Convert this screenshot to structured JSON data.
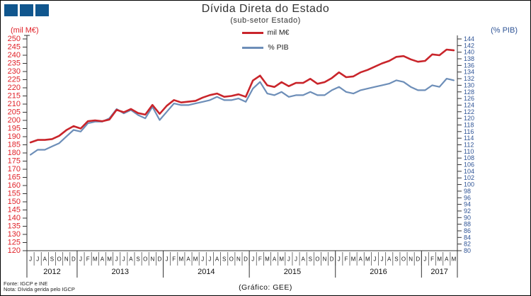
{
  "logo": {
    "square_count": 3,
    "color": "#10568e"
  },
  "header": {
    "title": "Dívida Direta do Estado",
    "subtitle": "(sub-setor  Estado)"
  },
  "footer": {
    "fonte": "Fonte: IGCP e INE",
    "nota": "Nota: Dívida gerida pelo IGCP",
    "grafico": "(Gráfico:  GEE)"
  },
  "chart_data": {
    "type": "line",
    "title": "Dívida Direta do Estado",
    "subtitle": "(sub-setor Estado)",
    "grid": false,
    "legend_position": "top-center",
    "x_months": [
      "J",
      "J",
      "A",
      "S",
      "O",
      "N",
      "D",
      "J",
      "F",
      "M",
      "A",
      "M",
      "J",
      "J",
      "A",
      "S",
      "O",
      "N",
      "D",
      "J",
      "F",
      "M",
      "A",
      "M",
      "J",
      "J",
      "A",
      "S",
      "O",
      "N",
      "D",
      "J",
      "F",
      "M",
      "A",
      "M",
      "J",
      "J",
      "A",
      "S",
      "O",
      "N",
      "D",
      "J",
      "F",
      "M",
      "A",
      "M",
      "J",
      "J",
      "A",
      "S",
      "O",
      "N",
      "D",
      "J",
      "F",
      "M",
      "A",
      "M"
    ],
    "years": [
      {
        "label": "2012",
        "months": 7
      },
      {
        "label": "2013",
        "months": 12
      },
      {
        "label": "2014",
        "months": 12
      },
      {
        "label": "2015",
        "months": 12
      },
      {
        "label": "2016",
        "months": 12
      },
      {
        "label": "2017",
        "months": 5
      }
    ],
    "left_axis": {
      "label": "(mil M€)",
      "min": 120,
      "max": 250,
      "step": 5,
      "color": "#e01f26"
    },
    "right_axis": {
      "label": "(% PIB)",
      "min": 80,
      "max": 144,
      "step": 2,
      "color": "#2f5496"
    },
    "series": [
      {
        "name": "mil M€",
        "axis": "left",
        "color": "#c9252b",
        "values": [
          186.5,
          188.0,
          188.0,
          188.5,
          190.5,
          194.0,
          196.5,
          195.0,
          199.5,
          200.0,
          199.5,
          200.5,
          206.5,
          205.0,
          207.0,
          204.5,
          203.5,
          209.5,
          204.0,
          209.0,
          212.5,
          211.0,
          211.5,
          212.0,
          214.0,
          215.5,
          216.5,
          214.5,
          215.0,
          216.0,
          214.5,
          224.5,
          227.5,
          221.5,
          220.5,
          223.5,
          221.0,
          223.0,
          223.0,
          225.5,
          222.5,
          223.5,
          226.0,
          229.5,
          226.5,
          227.0,
          229.5,
          231.0,
          233.0,
          235.0,
          236.5,
          239.0,
          239.5,
          237.5,
          236.0,
          236.5,
          240.5,
          240.0,
          243.5,
          243.0
        ]
      },
      {
        "name": "% PIB",
        "axis": "right",
        "color": "#6d8eb8",
        "values": [
          109.0,
          110.5,
          110.5,
          111.5,
          112.5,
          114.5,
          116.5,
          116.0,
          118.5,
          119.0,
          119.0,
          120.0,
          122.8,
          121.5,
          122.5,
          121.0,
          120.0,
          123.5,
          119.5,
          122.0,
          124.5,
          124.0,
          124.0,
          124.5,
          125.0,
          125.5,
          126.5,
          125.5,
          125.5,
          126.0,
          125.0,
          129.0,
          131.0,
          127.5,
          127.0,
          128.0,
          126.5,
          127.0,
          127.0,
          128.0,
          127.0,
          127.0,
          128.5,
          129.5,
          128.0,
          127.5,
          128.5,
          129.0,
          129.5,
          130.0,
          130.5,
          131.5,
          131.0,
          129.5,
          128.5,
          128.5,
          130.0,
          129.5,
          132.0,
          131.5
        ]
      }
    ]
  }
}
